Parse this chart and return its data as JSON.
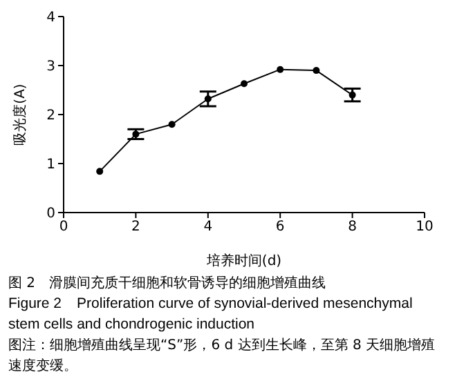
{
  "chart_data": {
    "type": "line",
    "title": "图 2　滑膜间充质干细胞和软骨诱导的细胞增殖曲线",
    "subtitle": "Figure 2　Proliferation curve of synovial-derived mesenchymal stem cells and chondrogenic induction",
    "annotations": [
      "图注：细胞增殖曲线呈现“S”形，6 d 达到生长峰，至第 8 天细胞增殖速度变缓。"
    ],
    "xlabel": "培养时间(d)",
    "ylabel": "吸光度(A)",
    "x": [
      1,
      2,
      3,
      4,
      5,
      6,
      7,
      8
    ],
    "series": [
      {
        "color": "#000000",
        "values": [
          0.84,
          1.6,
          1.8,
          2.32,
          2.63,
          2.92,
          2.9,
          2.4
        ],
        "errors": [
          null,
          0.1,
          null,
          0.15,
          null,
          null,
          null,
          0.13
        ]
      }
    ],
    "xlim": [
      0,
      10
    ],
    "xticks": [
      0,
      2,
      4,
      6,
      8,
      10
    ],
    "ylim": [
      0,
      4
    ],
    "yticks": [
      0,
      1,
      2,
      3,
      4
    ],
    "grid": false,
    "legend": false,
    "marker": "circle",
    "line_style": "solid"
  }
}
